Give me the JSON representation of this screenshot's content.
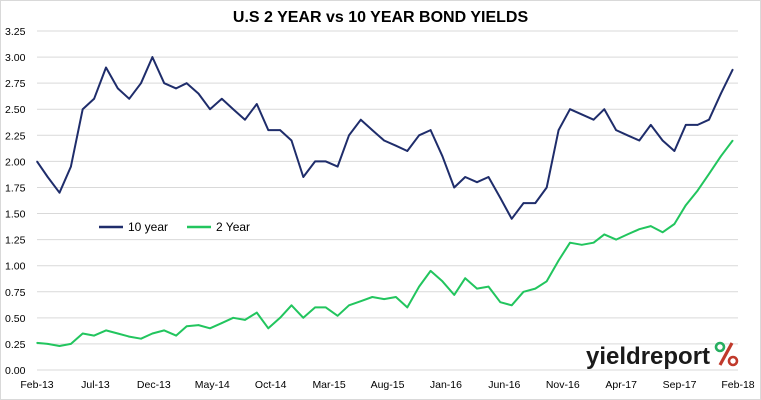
{
  "colors": {
    "ten_year": "#1f2d6b",
    "two_year": "#22c55e",
    "grid": "#d9d9d9",
    "logo_text": "#1a1a1a",
    "logo_red": "#c0392b",
    "logo_green": "#27ae60"
  },
  "logo": {
    "brand": "yieldreport",
    "symbol": "%"
  },
  "chart_data": {
    "type": "line",
    "title": "U.S 2 YEAR vs 10 YEAR BOND YIELDS",
    "xlabel": "",
    "ylabel": "",
    "x_tick_labels": [
      "Feb-13",
      "Jul-13",
      "Dec-13",
      "May-14",
      "Oct-14",
      "Mar-15",
      "Aug-15",
      "Jan-16",
      "Jun-16",
      "Nov-16",
      "Apr-17",
      "Sep-17",
      "Feb-18"
    ],
    "y_tick_labels": [
      "0.00",
      "0.25",
      "0.50",
      "0.75",
      "1.00",
      "1.25",
      "1.50",
      "1.75",
      "2.00",
      "2.25",
      "2.50",
      "2.75",
      "3.00",
      "3.25"
    ],
    "ylim": [
      0,
      3.25
    ],
    "grid": true,
    "legend_position": "center-left",
    "series": [
      {
        "name": "10 year",
        "x": [
          "2013-02",
          "2013-03",
          "2013-04",
          "2013-05",
          "2013-06",
          "2013-07",
          "2013-08",
          "2013-09",
          "2013-10",
          "2013-11",
          "2013-12",
          "2014-01",
          "2014-02",
          "2014-03",
          "2014-04",
          "2014-05",
          "2014-06",
          "2014-07",
          "2014-08",
          "2014-09",
          "2014-10",
          "2014-11",
          "2014-12",
          "2015-01",
          "2015-02",
          "2015-03",
          "2015-04",
          "2015-05",
          "2015-06",
          "2015-07",
          "2015-08",
          "2015-09",
          "2015-10",
          "2015-11",
          "2015-12",
          "2016-01",
          "2016-02",
          "2016-03",
          "2016-04",
          "2016-05",
          "2016-06",
          "2016-07",
          "2016-08",
          "2016-09",
          "2016-10",
          "2016-11",
          "2016-12",
          "2017-01",
          "2017-02",
          "2017-03",
          "2017-04",
          "2017-05",
          "2017-06",
          "2017-07",
          "2017-08",
          "2017-09",
          "2017-10",
          "2017-11",
          "2017-12",
          "2018-01",
          "2018-02"
        ],
        "values": [
          2.0,
          1.85,
          1.7,
          1.95,
          2.5,
          2.6,
          2.9,
          2.7,
          2.6,
          2.75,
          3.0,
          2.75,
          2.7,
          2.75,
          2.65,
          2.5,
          2.6,
          2.5,
          2.4,
          2.55,
          2.3,
          2.3,
          2.2,
          1.85,
          2.0,
          2.0,
          1.95,
          2.25,
          2.4,
          2.3,
          2.2,
          2.15,
          2.1,
          2.25,
          2.3,
          2.05,
          1.75,
          1.85,
          1.8,
          1.85,
          1.65,
          1.45,
          1.6,
          1.6,
          1.75,
          2.3,
          2.5,
          2.45,
          2.4,
          2.5,
          2.3,
          2.25,
          2.2,
          2.35,
          2.2,
          2.1,
          2.35,
          2.35,
          2.4,
          2.65,
          2.88
        ]
      },
      {
        "name": "2 Year",
        "x": [
          "2013-02",
          "2013-03",
          "2013-04",
          "2013-05",
          "2013-06",
          "2013-07",
          "2013-08",
          "2013-09",
          "2013-10",
          "2013-11",
          "2013-12",
          "2014-01",
          "2014-02",
          "2014-03",
          "2014-04",
          "2014-05",
          "2014-06",
          "2014-07",
          "2014-08",
          "2014-09",
          "2014-10",
          "2014-11",
          "2014-12",
          "2015-01",
          "2015-02",
          "2015-03",
          "2015-04",
          "2015-05",
          "2015-06",
          "2015-07",
          "2015-08",
          "2015-09",
          "2015-10",
          "2015-11",
          "2015-12",
          "2016-01",
          "2016-02",
          "2016-03",
          "2016-04",
          "2016-05",
          "2016-06",
          "2016-07",
          "2016-08",
          "2016-09",
          "2016-10",
          "2016-11",
          "2016-12",
          "2017-01",
          "2017-02",
          "2017-03",
          "2017-04",
          "2017-05",
          "2017-06",
          "2017-07",
          "2017-08",
          "2017-09",
          "2017-10",
          "2017-11",
          "2017-12",
          "2018-01",
          "2018-02"
        ],
        "values": [
          0.26,
          0.25,
          0.23,
          0.25,
          0.35,
          0.33,
          0.38,
          0.35,
          0.32,
          0.3,
          0.35,
          0.38,
          0.33,
          0.42,
          0.43,
          0.4,
          0.45,
          0.5,
          0.48,
          0.55,
          0.4,
          0.5,
          0.62,
          0.5,
          0.6,
          0.6,
          0.52,
          0.62,
          0.66,
          0.7,
          0.68,
          0.7,
          0.6,
          0.8,
          0.95,
          0.85,
          0.72,
          0.88,
          0.78,
          0.8,
          0.65,
          0.62,
          0.75,
          0.78,
          0.85,
          1.05,
          1.22,
          1.2,
          1.22,
          1.3,
          1.25,
          1.3,
          1.35,
          1.38,
          1.32,
          1.4,
          1.58,
          1.72,
          1.88,
          2.05,
          2.2
        ]
      }
    ]
  }
}
